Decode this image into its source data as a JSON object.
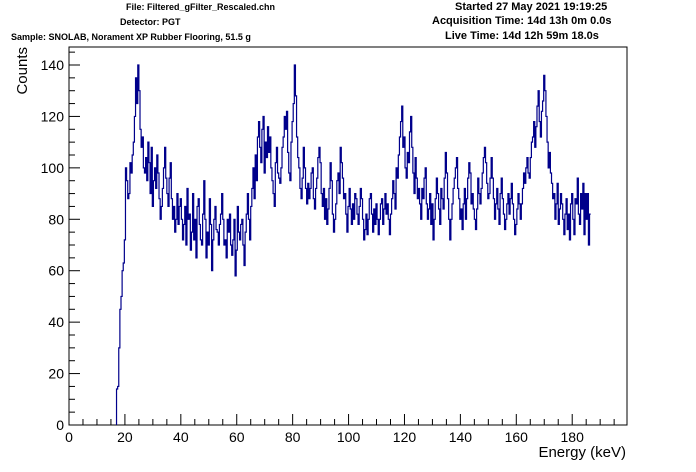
{
  "header": {
    "file": "File: Filtered_gFilter_Rescaled.chn",
    "detector": "Detector: PGT",
    "sample": "Sample: SNOLAB, Norament XP Rubber Flooring, 51.5 g",
    "started": "Started 27 May 2021 19:19:25",
    "acquisition_time": "Acquisition Time: 14d 13h 0m 0.0s",
    "live_time": "Live Time: 14d 12h 59m 18.0s"
  },
  "chart_data": {
    "type": "line",
    "style": "step-histogram",
    "line_color": "#00008b",
    "xlabel": "Energy (keV)",
    "ylabel": "Counts",
    "xlim": [
      0,
      199.6
    ],
    "ylim": [
      0,
      147
    ],
    "x_ticks": [
      0,
      20,
      40,
      60,
      80,
      100,
      120,
      140,
      160,
      180
    ],
    "y_ticks": [
      0,
      20,
      40,
      60,
      80,
      100,
      120,
      140
    ],
    "bin_width": 0.4,
    "x_start": 17.0,
    "series": [
      {
        "values": [
          14,
          15,
          30,
          45,
          50,
          60,
          63,
          72,
          100,
          95,
          88,
          90,
          102,
          98,
          105,
          110,
          120,
          135,
          125,
          140,
          130,
          115,
          108,
          112,
          100,
          98,
          104,
          95,
          110,
          102,
          90,
          108,
          85,
          95,
          100,
          92,
          105,
          98,
          88,
          80,
          85,
          92,
          100,
          108,
          96,
          90,
          85,
          96,
          102,
          88,
          80,
          85,
          75,
          80,
          90,
          78,
          85,
          88,
          80,
          72,
          78,
          85,
          70,
          92,
          80,
          82,
          68,
          75,
          90,
          72,
          80,
          65,
          85,
          88,
          78,
          72,
          70,
          82,
          95,
          80,
          65,
          75,
          70,
          88,
          78,
          60,
          72,
          80,
          85,
          76,
          75,
          70,
          78,
          82,
          90,
          80,
          70,
          72,
          65,
          80,
          75,
          82,
          70,
          66,
          72,
          80,
          58,
          68,
          85,
          75,
          72,
          78,
          80,
          70,
          62,
          75,
          82,
          90,
          80,
          72,
          85,
          92,
          100,
          88,
          105,
          95,
          112,
          118,
          108,
          102,
          115,
          120,
          98,
          110,
          104,
          116,
          106,
          112,
          100,
          95,
          90,
          85,
          102,
          108,
          98,
          96,
          94,
          100,
          108,
          112,
          120,
          115,
          122,
          106,
          98,
          95,
          110,
          118,
          125,
          140,
          128,
          112,
          104,
          100,
          92,
          88,
          96,
          108,
          100,
          92,
          86,
          94,
          88,
          92,
          98,
          100,
          88,
          84,
          92,
          96,
          104,
          108,
          102,
          90,
          85,
          92,
          80,
          88,
          78,
          84,
          92,
          102,
          95,
          82,
          75,
          80,
          86,
          95,
          98,
          90,
          108,
          102,
          96,
          88,
          90,
          82,
          75,
          85,
          92,
          84,
          78,
          86,
          80,
          90,
          88,
          82,
          78,
          85,
          92,
          88,
          80,
          72,
          76,
          82,
          74,
          80,
          88,
          90,
          82,
          75,
          84,
          78,
          86,
          80,
          74,
          80,
          86,
          88,
          78,
          84,
          90,
          82,
          86,
          80,
          74,
          82,
          88,
          95,
          90,
          84,
          100,
          96,
          105,
          112,
          118,
          124,
          108,
          112,
          100,
          96,
          106,
          102,
          114,
          120,
          108,
          98,
          90,
          104,
          96,
          88,
          92,
          86,
          80,
          92,
          88,
          96,
          100,
          86,
          80,
          84,
          90,
          78,
          86,
          72,
          80,
          88,
          96,
          90,
          84,
          78,
          92,
          88,
          84,
          96,
          106,
          98,
          88,
          80,
          72,
          80,
          86,
          92,
          96,
          100,
          104,
          92,
          88,
          80,
          84,
          76,
          86,
          92,
          80,
          88,
          96,
          102,
          98,
          86,
          90,
          84,
          80,
          76,
          84,
          96,
          90,
          86,
          92,
          98,
          104,
          108,
          102,
          94,
          88,
          90,
          96,
          104,
          96,
          88,
          80,
          86,
          92,
          84,
          78,
          90,
          96,
          88,
          82,
          76,
          80,
          86,
          90,
          82,
          88,
          94,
          86,
          80,
          74,
          78,
          84,
          90,
          86,
          80,
          86,
          92,
          98,
          94,
          100,
          104,
          98,
          96,
          104,
          110,
          112,
          118,
          108,
          116,
          124,
          130,
          118,
          112,
          122,
          126,
          136,
          130,
          120,
          110,
          100,
          106,
          98,
          94,
          88,
          90,
          80,
          86,
          94,
          78,
          84,
          90,
          86,
          80,
          74,
          82,
          88,
          76,
          82,
          72,
          86,
          90,
          80,
          74,
          88,
          86,
          96,
          82,
          78,
          90,
          84,
          94,
          74,
          90,
          80,
          90,
          70,
          82
        ]
      }
    ]
  }
}
